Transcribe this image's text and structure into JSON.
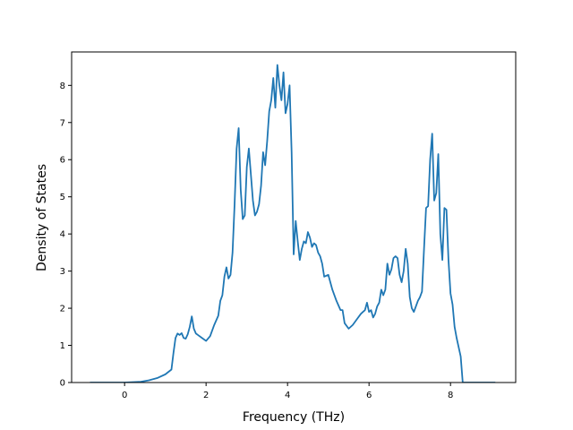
{
  "chart_data": {
    "type": "line",
    "title": "",
    "xlabel": "Frequency (THz)",
    "ylabel": "Density of States",
    "xlim": [
      -1.3,
      9.6
    ],
    "ylim": [
      0,
      8.9
    ],
    "grid": false,
    "xticks": [
      0,
      2,
      4,
      6,
      8
    ],
    "xtick_labels": [
      "0",
      "2",
      "4",
      "6",
      "8"
    ],
    "yticks": [
      0,
      1,
      2,
      3,
      4,
      5,
      6,
      7,
      8
    ],
    "ytick_labels": [
      "0",
      "1",
      "2",
      "3",
      "4",
      "5",
      "6",
      "7",
      "8"
    ],
    "series": [
      {
        "color": "#1f77b4",
        "x": [
          -0.85,
          0.0,
          0.4,
          0.6,
          0.8,
          1.0,
          1.15,
          1.2,
          1.25,
          1.3,
          1.35,
          1.4,
          1.45,
          1.5,
          1.55,
          1.6,
          1.65,
          1.7,
          1.75,
          1.8,
          1.9,
          2.0,
          2.1,
          2.2,
          2.3,
          2.35,
          2.4,
          2.45,
          2.5,
          2.55,
          2.6,
          2.65,
          2.7,
          2.75,
          2.8,
          2.85,
          2.9,
          2.95,
          3.0,
          3.05,
          3.1,
          3.15,
          3.2,
          3.25,
          3.3,
          3.35,
          3.4,
          3.45,
          3.5,
          3.55,
          3.6,
          3.65,
          3.7,
          3.75,
          3.8,
          3.85,
          3.9,
          3.95,
          4.0,
          4.05,
          4.1,
          4.15,
          4.2,
          4.25,
          4.3,
          4.35,
          4.4,
          4.45,
          4.5,
          4.55,
          4.6,
          4.65,
          4.7,
          4.75,
          4.8,
          4.85,
          4.9,
          5.0,
          5.1,
          5.2,
          5.3,
          5.35,
          5.4,
          5.5,
          5.6,
          5.7,
          5.8,
          5.85,
          5.9,
          5.95,
          6.0,
          6.05,
          6.1,
          6.15,
          6.2,
          6.25,
          6.3,
          6.35,
          6.4,
          6.45,
          6.5,
          6.55,
          6.6,
          6.65,
          6.7,
          6.75,
          6.8,
          6.85,
          6.9,
          6.95,
          7.0,
          7.05,
          7.1,
          7.15,
          7.2,
          7.25,
          7.3,
          7.35,
          7.4,
          7.45,
          7.5,
          7.55,
          7.6,
          7.65,
          7.7,
          7.75,
          7.8,
          7.85,
          7.9,
          7.95,
          8.0,
          8.05,
          8.1,
          8.15,
          8.2,
          8.25,
          8.3,
          9.1
        ],
        "y": [
          0.0,
          0.0,
          0.02,
          0.06,
          0.12,
          0.22,
          0.35,
          0.8,
          1.2,
          1.32,
          1.28,
          1.33,
          1.2,
          1.18,
          1.3,
          1.5,
          1.78,
          1.45,
          1.32,
          1.28,
          1.2,
          1.12,
          1.25,
          1.55,
          1.8,
          2.2,
          2.35,
          2.85,
          3.1,
          2.8,
          2.9,
          3.5,
          4.8,
          6.3,
          6.85,
          5.2,
          4.4,
          4.5,
          5.8,
          6.3,
          5.6,
          4.9,
          4.5,
          4.6,
          4.8,
          5.3,
          6.2,
          5.85,
          6.5,
          7.3,
          7.6,
          8.2,
          7.4,
          8.55,
          8.0,
          7.6,
          8.35,
          7.25,
          7.5,
          8.0,
          6.2,
          3.45,
          4.35,
          3.8,
          3.3,
          3.6,
          3.8,
          3.75,
          4.05,
          3.9,
          3.65,
          3.75,
          3.7,
          3.5,
          3.4,
          3.2,
          2.85,
          2.9,
          2.5,
          2.2,
          1.95,
          1.95,
          1.6,
          1.45,
          1.55,
          1.7,
          1.85,
          1.9,
          1.95,
          2.15,
          1.9,
          1.95,
          1.75,
          1.85,
          2.05,
          2.15,
          2.5,
          2.35,
          2.5,
          3.2,
          2.9,
          3.05,
          3.35,
          3.4,
          3.35,
          2.9,
          2.7,
          3.0,
          3.6,
          3.2,
          2.3,
          2.0,
          1.9,
          2.05,
          2.2,
          2.3,
          2.45,
          3.6,
          4.7,
          4.75,
          6.0,
          6.7,
          4.9,
          5.1,
          6.15,
          4.0,
          3.3,
          4.7,
          4.65,
          3.3,
          2.4,
          2.1,
          1.5,
          1.2,
          0.95,
          0.7,
          0.0,
          0.0
        ]
      }
    ]
  }
}
